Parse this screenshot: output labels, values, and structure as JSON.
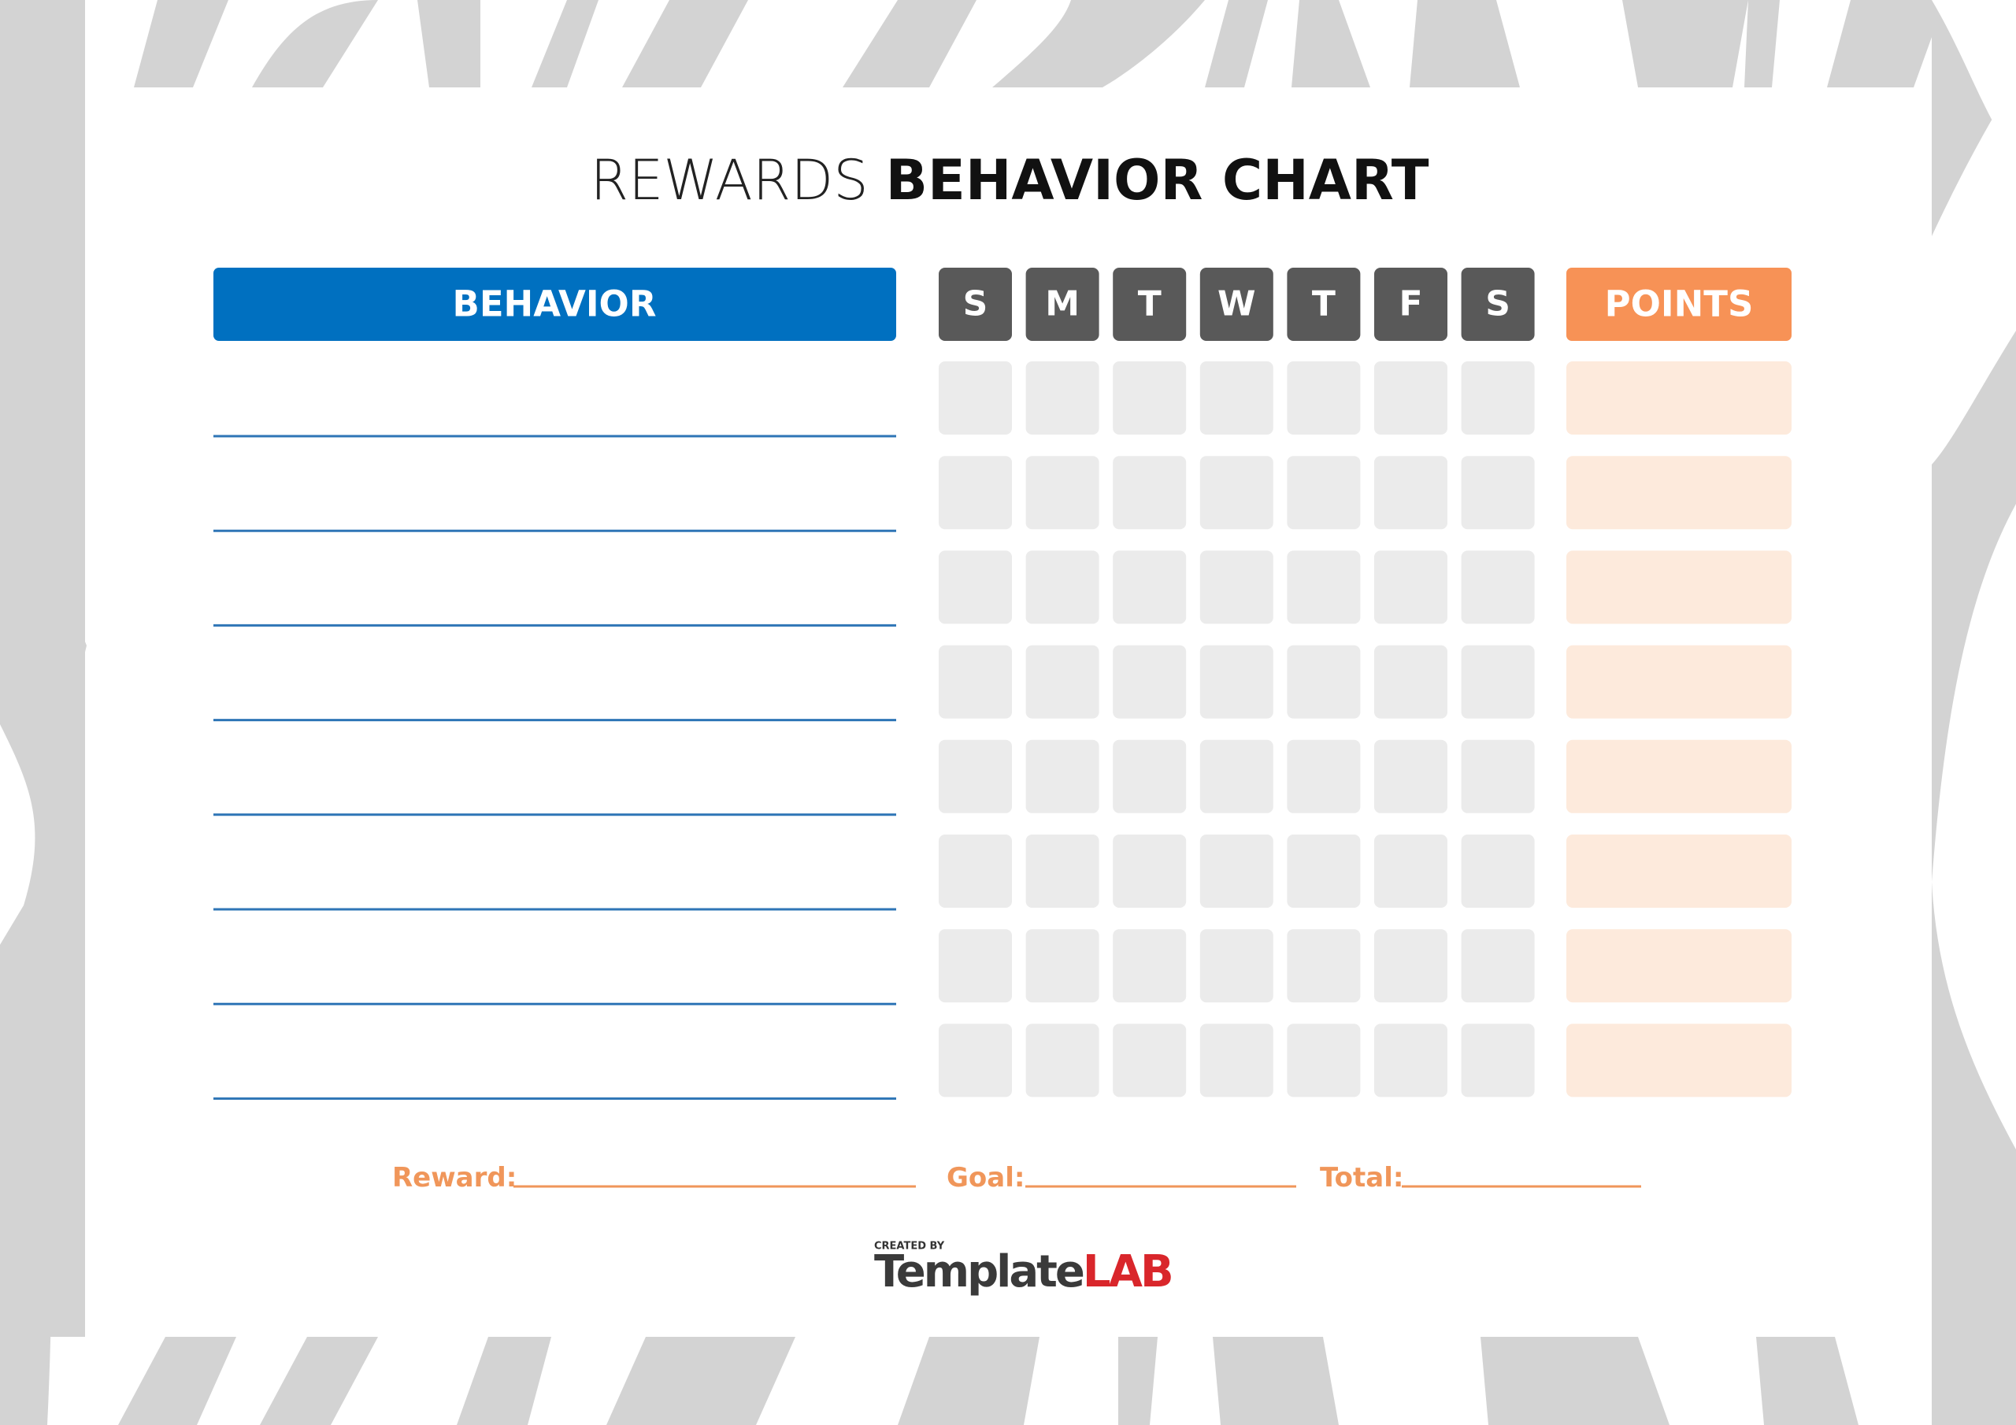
{
  "header": {
    "title_light": "REWARDS",
    "title_bold": "BEHAVIOR CHART"
  },
  "table": {
    "behavior_header": "BEHAVIOR",
    "days": [
      "S",
      "M",
      "T",
      "W",
      "T",
      "F",
      "S"
    ],
    "points_header": "POINTS"
  },
  "footer": {
    "reward": "Reward:",
    "goal": "Goal:",
    "total": "Total:"
  },
  "logo": {
    "created_by": "CREATED BY",
    "template": "Template",
    "lab": "LAB"
  }
}
